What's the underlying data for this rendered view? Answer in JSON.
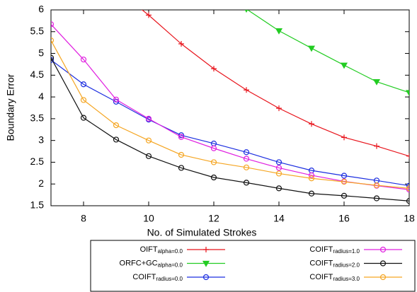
{
  "chart_data": {
    "type": "line",
    "x_label": "No. of Simulated Strokes",
    "y_label": "Boundary Error",
    "x": [
      7,
      8,
      9,
      10,
      11,
      12,
      13,
      14,
      15,
      16,
      17,
      18
    ],
    "xlim": [
      7,
      18
    ],
    "xticks": [
      8,
      10,
      12,
      14,
      16,
      18
    ],
    "ylim": [
      1.5,
      6
    ],
    "yticks": [
      1.5,
      2,
      2.5,
      3,
      3.5,
      4,
      4.5,
      5,
      5.5,
      6
    ],
    "series": [
      {
        "name": "OIFT",
        "subscript": "alpha=0.0",
        "color": "#e8141c",
        "marker": "plus",
        "values": [
          null,
          null,
          6.48,
          5.88,
          5.22,
          4.65,
          4.16,
          3.74,
          3.38,
          3.07,
          2.87,
          2.64
        ]
      },
      {
        "name": "ORFC+GC",
        "subscript": "alpha=0.0",
        "color": "#22cc22",
        "marker": "triangle-down",
        "values": [
          null,
          null,
          null,
          null,
          null,
          null,
          6.02,
          5.52,
          5.12,
          4.73,
          4.35,
          4.1
        ]
      },
      {
        "name": "COIFT",
        "subscript": "radius=0.0",
        "color": "#1c2ee0",
        "marker": "circle",
        "values": [
          4.85,
          4.29,
          3.89,
          3.48,
          3.12,
          2.93,
          2.73,
          2.5,
          2.31,
          2.19,
          2.08,
          1.96
        ]
      },
      {
        "name": "COIFT",
        "subscript": "radius=1.0",
        "color": "#e020e0",
        "marker": "circle",
        "values": [
          5.67,
          4.86,
          3.94,
          3.5,
          3.08,
          2.82,
          2.58,
          2.37,
          2.2,
          2.06,
          1.96,
          1.87
        ]
      },
      {
        "name": "COIFT",
        "subscript": "radius=2.0",
        "color": "#111111",
        "marker": "circle",
        "values": [
          4.9,
          3.52,
          3.02,
          2.64,
          2.37,
          2.15,
          2.03,
          1.9,
          1.78,
          1.73,
          1.67,
          1.61
        ]
      },
      {
        "name": "COIFT",
        "subscript": "radius=3.0",
        "color": "#f5a623",
        "marker": "circle",
        "values": [
          5.3,
          3.93,
          3.35,
          3.0,
          2.67,
          2.5,
          2.38,
          2.24,
          2.13,
          2.05,
          1.97,
          1.9
        ]
      }
    ]
  }
}
